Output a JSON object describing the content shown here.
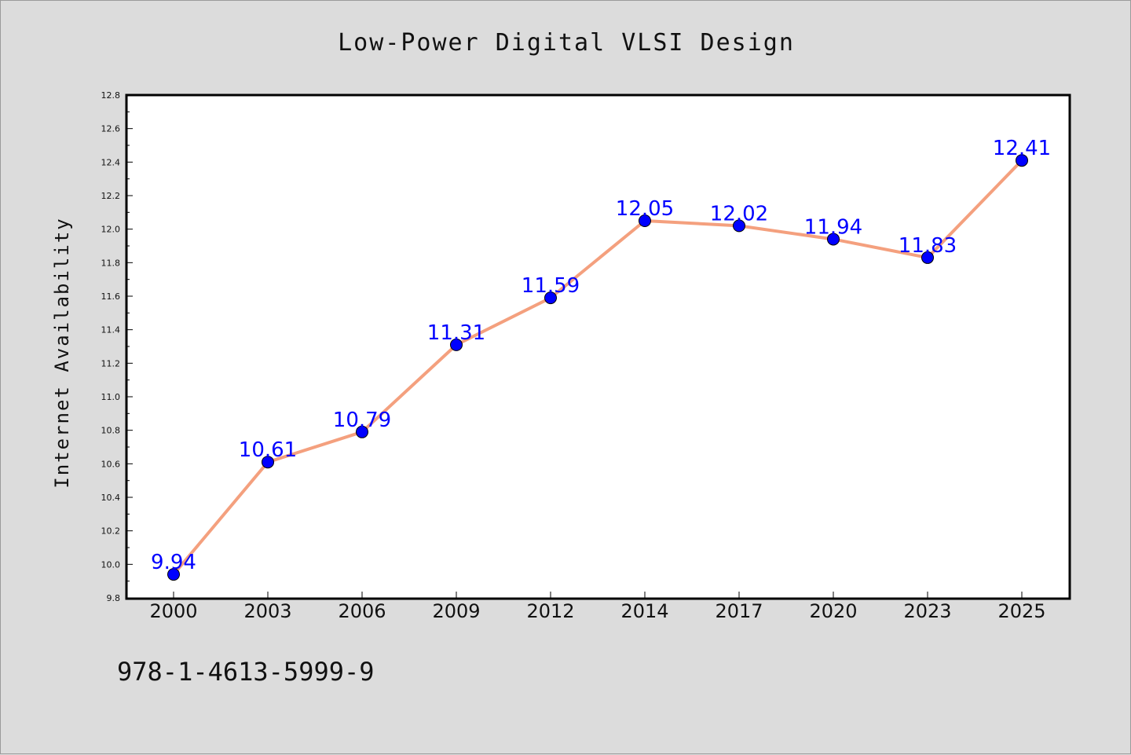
{
  "chart_data": {
    "type": "line",
    "title": "Low-Power Digital VLSI Design",
    "xlabel": "",
    "ylabel": "Internet Availability",
    "categories": [
      "2000",
      "2003",
      "2006",
      "2009",
      "2012",
      "2014",
      "2017",
      "2020",
      "2023",
      "2025"
    ],
    "values": [
      9.94,
      10.61,
      10.79,
      11.31,
      11.59,
      12.05,
      12.02,
      11.94,
      11.83,
      12.41
    ],
    "data_labels": [
      "9.94",
      "10.61",
      "10.79",
      "11.31",
      "11.59",
      "12.05",
      "12.02",
      "11.94",
      "11.83",
      "12.41"
    ],
    "ylim": [
      9.8,
      12.8
    ],
    "yticks": [
      "9.8",
      "10.0",
      "10.2",
      "10.4",
      "10.6",
      "10.8",
      "11.0",
      "11.2",
      "11.4",
      "11.6",
      "11.8",
      "12.0",
      "12.2",
      "12.4",
      "12.6",
      "12.8"
    ],
    "grid": false,
    "line_color": "#f4a07e",
    "marker_color": "#0000ff",
    "label_color": "#0000ff"
  },
  "footer_text": "978-1-4613-5999-9"
}
